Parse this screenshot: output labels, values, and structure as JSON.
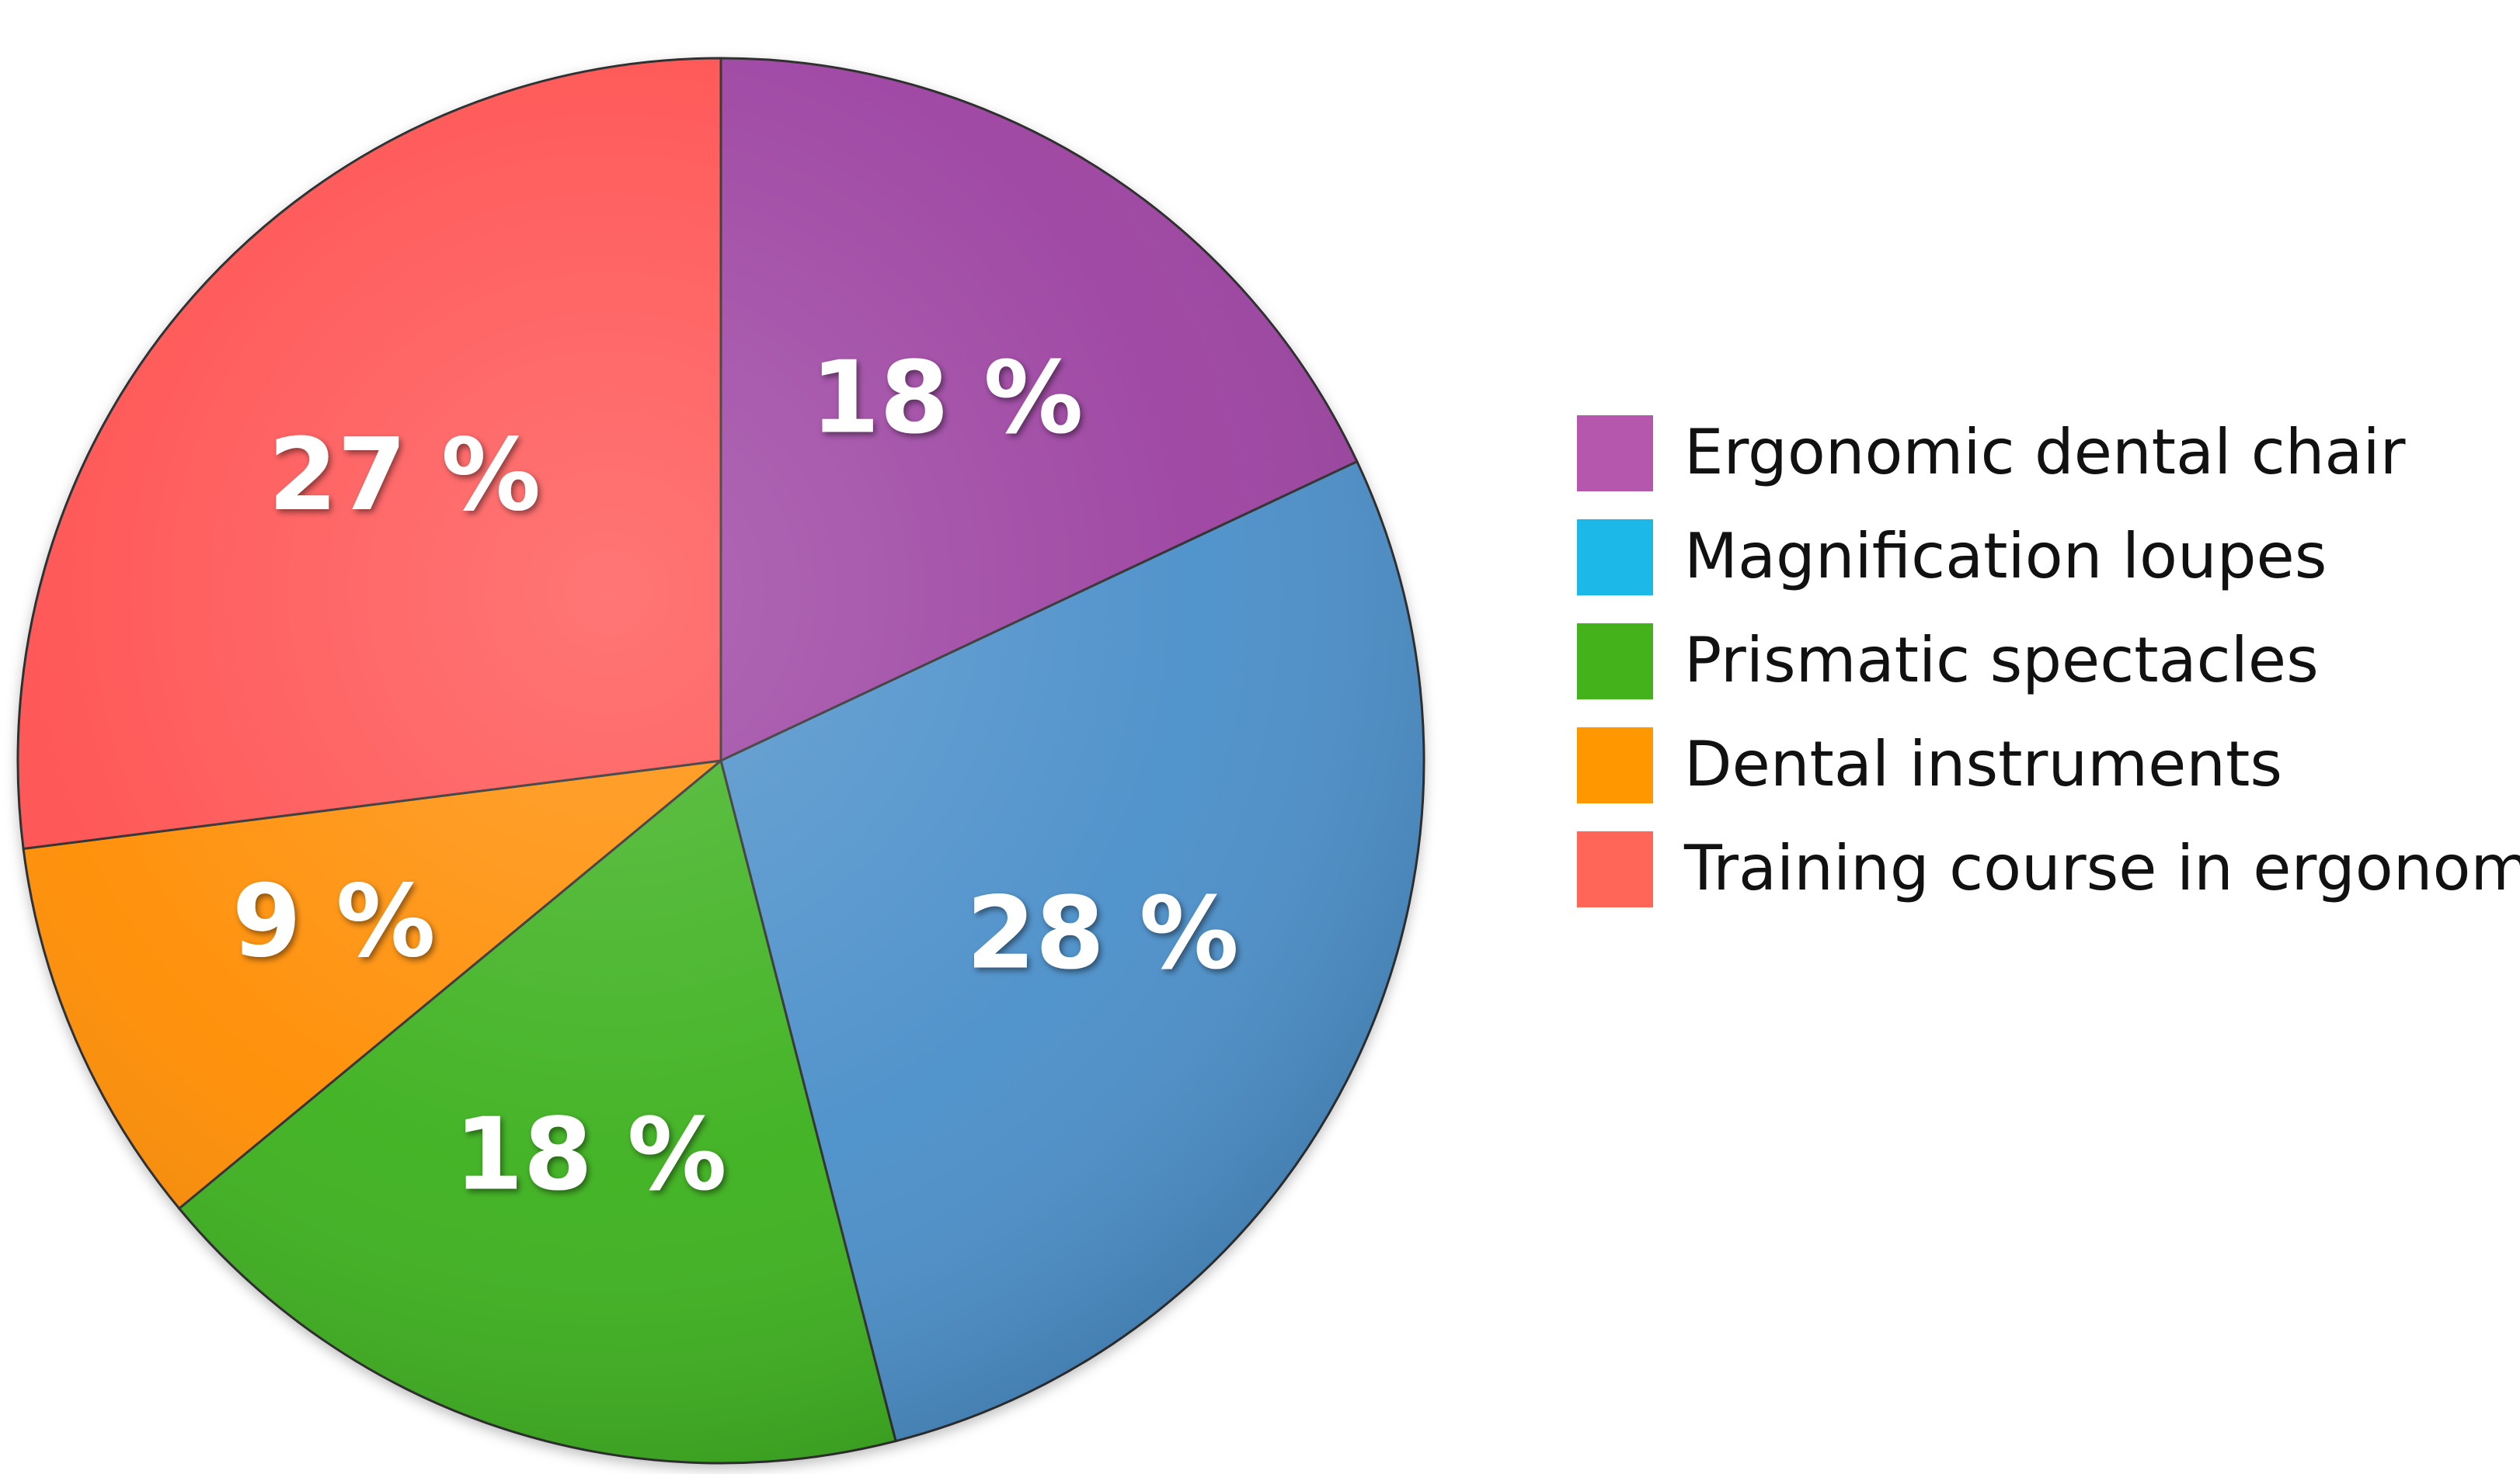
{
  "chart_data": {
    "type": "pie",
    "title": "",
    "legend_position": "right",
    "start_angle_deg": 0,
    "direction": "clockwise",
    "slices": [
      {
        "name": "Ergonomic dental chair",
        "value": 18,
        "label": "18 %",
        "color": "#9b40a0",
        "legend_color": "#b457ad"
      },
      {
        "name": "Magnification loupes",
        "value": 28,
        "label": "28 %",
        "color": "#4a8ec9",
        "legend_color": "#1cb8e8"
      },
      {
        "name": "Prismatic spectacles",
        "value": 18,
        "label": "18 %",
        "color": "#3ab01c",
        "legend_color": "#44b21b"
      },
      {
        "name": "Dental instruments",
        "value": 9,
        "label": "9 %",
        "color": "#ff8c00",
        "legend_color": "#ff9700"
      },
      {
        "name": "Training course in ergonomics",
        "value": 27,
        "label": "27 %",
        "color": "#ff4f4f",
        "legend_color": "#ff6658"
      }
    ]
  }
}
